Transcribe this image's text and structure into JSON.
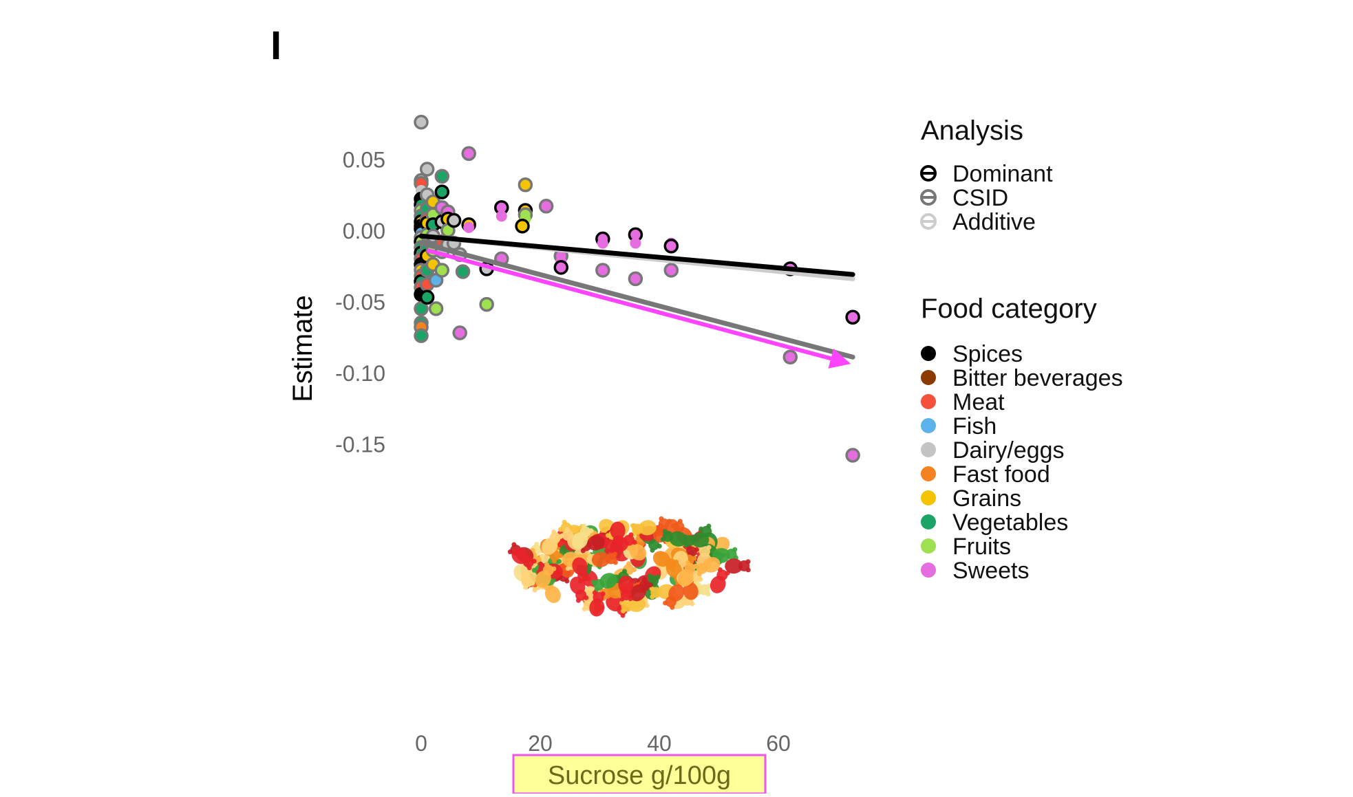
{
  "chart_data": {
    "type": "scatter",
    "panel_label": "I",
    "xlabel": "Sucrose g/100g",
    "ylabel": "Estimate",
    "xlim": [
      -2,
      73
    ],
    "ylim": [
      -0.175,
      0.078
    ],
    "x_ticks": [
      0,
      20,
      40,
      60
    ],
    "x_tick_labels": [
      "0",
      "20",
      "40",
      "60"
    ],
    "y_ticks": [
      0.05,
      0.0,
      -0.05,
      -0.1,
      -0.15
    ],
    "y_tick_labels": [
      "0.05",
      "0.00",
      "-0.05",
      "-0.10",
      "-0.15"
    ],
    "grid": false,
    "xlabel_highlight": {
      "fill": "#ffff99",
      "stroke": "#ee55ee"
    },
    "arrow": {
      "from": [
        1,
        -0.014
      ],
      "to": [
        71.5,
        -0.093
      ],
      "color": "#ff44ff"
    },
    "illustration": "gummy-bears-pile",
    "legends": [
      {
        "title": "Analysis",
        "placement": "right-top",
        "entries": [
          {
            "label": "Dominant",
            "color": "#000000"
          },
          {
            "label": "CSID",
            "color": "#777777"
          },
          {
            "label": "Additive",
            "color": "#cccccc"
          }
        ]
      },
      {
        "title": "Food category",
        "placement": "right-middle",
        "entries": [
          {
            "label": "Spices",
            "color": "#000000"
          },
          {
            "label": "Bitter beverages",
            "color": "#8b3a00"
          },
          {
            "label": "Meat",
            "color": "#f4503c"
          },
          {
            "label": "Fish",
            "color": "#5bb3ea"
          },
          {
            "label": "Dairy/eggs",
            "color": "#c4c4c4"
          },
          {
            "label": "Fast food",
            "color": "#f58220"
          },
          {
            "label": "Grains",
            "color": "#f5c400"
          },
          {
            "label": "Vegetables",
            "color": "#1aa567"
          },
          {
            "label": "Fruits",
            "color": "#9ee04f"
          },
          {
            "label": "Sweets",
            "color": "#e46ee0"
          }
        ]
      }
    ],
    "series": [
      {
        "name": "Dominant",
        "color": "#000000",
        "regression": {
          "x": [
            0,
            72.5
          ],
          "y": [
            -0.004,
            -0.031
          ]
        }
      },
      {
        "name": "CSID",
        "color": "#777777",
        "regression": {
          "x": [
            0,
            72.5
          ],
          "y": [
            -0.009,
            -0.089
          ]
        }
      },
      {
        "name": "Additive",
        "color": "#cccccc",
        "regression": {
          "x": [
            0,
            72.5
          ],
          "y": [
            -0.004,
            -0.034
          ]
        }
      }
    ],
    "points": [
      {
        "x": 0,
        "y": 0.076,
        "category": "Dairy/eggs",
        "analysis": "CSID"
      },
      {
        "x": 1,
        "y": 0.043,
        "category": "Dairy/eggs",
        "analysis": "CSID"
      },
      {
        "x": 0,
        "y": 0.035,
        "category": "Dairy/eggs",
        "analysis": "CSID"
      },
      {
        "x": 0,
        "y": 0.033,
        "category": "Meat",
        "analysis": "CSID"
      },
      {
        "x": 0,
        "y": 0.028,
        "category": "Dairy/eggs",
        "analysis": "Additive"
      },
      {
        "x": 0,
        "y": 0.022,
        "category": "Spices",
        "analysis": "Dominant"
      },
      {
        "x": 0,
        "y": 0.018,
        "category": "Vegetables",
        "analysis": "Dominant"
      },
      {
        "x": 0,
        "y": 0.014,
        "category": "Fruits",
        "analysis": "CSID"
      },
      {
        "x": 0,
        "y": 0.01,
        "category": "Vegetables",
        "analysis": "CSID"
      },
      {
        "x": 0,
        "y": 0.006,
        "category": "Grains",
        "analysis": "Dominant"
      },
      {
        "x": 0,
        "y": 0.003,
        "category": "Meat",
        "analysis": "Dominant"
      },
      {
        "x": 0,
        "y": 0.001,
        "category": "Spices",
        "analysis": "Dominant"
      },
      {
        "x": 0,
        "y": -0.002,
        "category": "Fish",
        "analysis": "Additive"
      },
      {
        "x": 0,
        "y": -0.005,
        "category": "Dairy/eggs",
        "analysis": "CSID"
      },
      {
        "x": 0,
        "y": -0.008,
        "category": "Fruits",
        "analysis": "Dominant"
      },
      {
        "x": 0,
        "y": -0.012,
        "category": "Vegetables",
        "analysis": "CSID"
      },
      {
        "x": 0,
        "y": -0.016,
        "category": "Vegetables",
        "analysis": "Dominant"
      },
      {
        "x": 0,
        "y": -0.02,
        "category": "Meat",
        "analysis": "CSID"
      },
      {
        "x": 0,
        "y": -0.024,
        "category": "Spices",
        "analysis": "Dominant"
      },
      {
        "x": 0,
        "y": -0.028,
        "category": "Grains",
        "analysis": "CSID"
      },
      {
        "x": 0,
        "y": -0.032,
        "category": "Meat",
        "analysis": "CSID"
      },
      {
        "x": 0,
        "y": -0.036,
        "category": "Vegetables",
        "analysis": "Dominant"
      },
      {
        "x": 0,
        "y": -0.04,
        "category": "Meat",
        "analysis": "CSID"
      },
      {
        "x": 0,
        "y": -0.045,
        "category": "Spices",
        "analysis": "Dominant"
      },
      {
        "x": 0,
        "y": -0.055,
        "category": "Vegetables",
        "analysis": "CSID"
      },
      {
        "x": 0,
        "y": -0.065,
        "category": "Vegetables",
        "analysis": "CSID"
      },
      {
        "x": 0,
        "y": -0.068,
        "category": "Fast food",
        "analysis": "CSID"
      },
      {
        "x": 0,
        "y": -0.074,
        "category": "Vegetables",
        "analysis": "CSID"
      },
      {
        "x": 1,
        "y": 0.025,
        "category": "Dairy/eggs",
        "analysis": "CSID"
      },
      {
        "x": 1,
        "y": 0.015,
        "category": "Vegetables",
        "analysis": "CSID"
      },
      {
        "x": 1,
        "y": 0.008,
        "category": "Meat",
        "analysis": "CSID"
      },
      {
        "x": 1,
        "y": 0.005,
        "category": "Grains",
        "analysis": "Dominant"
      },
      {
        "x": 1,
        "y": -0.003,
        "category": "Fruits",
        "analysis": "CSID"
      },
      {
        "x": 1,
        "y": -0.012,
        "category": "Vegetables",
        "analysis": "CSID"
      },
      {
        "x": 1,
        "y": -0.018,
        "category": "Grains",
        "analysis": "Dominant"
      },
      {
        "x": 1,
        "y": -0.028,
        "category": "Vegetables",
        "analysis": "CSID"
      },
      {
        "x": 1,
        "y": -0.038,
        "category": "Meat",
        "analysis": "CSID"
      },
      {
        "x": 1,
        "y": -0.047,
        "category": "Vegetables",
        "analysis": "Dominant"
      },
      {
        "x": 2,
        "y": 0.02,
        "category": "Grains",
        "analysis": "CSID"
      },
      {
        "x": 2,
        "y": 0.011,
        "category": "Fruits",
        "analysis": "CSID"
      },
      {
        "x": 2,
        "y": 0.004,
        "category": "Vegetables",
        "analysis": "Dominant"
      },
      {
        "x": 2,
        "y": -0.004,
        "category": "Dairy/eggs",
        "analysis": "CSID"
      },
      {
        "x": 2,
        "y": -0.014,
        "category": "Fruits",
        "analysis": "CSID"
      },
      {
        "x": 2,
        "y": -0.024,
        "category": "Grains",
        "analysis": "CSID"
      },
      {
        "x": 2.5,
        "y": -0.035,
        "category": "Fish",
        "analysis": "CSID"
      },
      {
        "x": 2.5,
        "y": -0.055,
        "category": "Fruits",
        "analysis": "CSID"
      },
      {
        "x": 3.5,
        "y": 0.038,
        "category": "Vegetables",
        "analysis": "CSID"
      },
      {
        "x": 3.5,
        "y": 0.027,
        "category": "Vegetables",
        "analysis": "Dominant"
      },
      {
        "x": 3.5,
        "y": 0.016,
        "category": "Sweets",
        "analysis": "CSID"
      },
      {
        "x": 3.5,
        "y": 0.006,
        "category": "Dairy/eggs",
        "analysis": "Dominant"
      },
      {
        "x": 3.5,
        "y": -0.008,
        "category": "Meat",
        "analysis": "CSID"
      },
      {
        "x": 3.5,
        "y": -0.015,
        "category": "Dairy/eggs",
        "analysis": "CSID"
      },
      {
        "x": 3.5,
        "y": -0.028,
        "category": "Fruits",
        "analysis": "CSID"
      },
      {
        "x": 4.5,
        "y": 0.013,
        "category": "Sweets",
        "analysis": "CSID"
      },
      {
        "x": 4.5,
        "y": 0.008,
        "category": "Grains",
        "analysis": "Dominant"
      },
      {
        "x": 4.5,
        "y": 0.0,
        "category": "Fruits",
        "analysis": "CSID"
      },
      {
        "x": 4.5,
        "y": -0.01,
        "category": "Dairy/eggs",
        "analysis": "CSID"
      },
      {
        "x": 5.5,
        "y": 0.007,
        "category": "Dairy/eggs",
        "analysis": "Dominant"
      },
      {
        "x": 5.5,
        "y": -0.009,
        "category": "Dairy/eggs",
        "analysis": "CSID"
      },
      {
        "x": 6.5,
        "y": -0.017,
        "category": "Dairy/eggs",
        "analysis": "CSID"
      },
      {
        "x": 6.5,
        "y": -0.072,
        "category": "Sweets",
        "analysis": "CSID"
      },
      {
        "x": 7,
        "y": -0.029,
        "category": "Vegetables",
        "analysis": "CSID"
      },
      {
        "x": 8,
        "y": 0.054,
        "category": "Sweets",
        "analysis": "CSID"
      },
      {
        "x": 8,
        "y": 0.004,
        "category": "Grains",
        "analysis": "Dominant"
      },
      {
        "x": 8,
        "y": 0.002,
        "category": "Sweets",
        "analysis": "Additive"
      },
      {
        "x": 11,
        "y": -0.027,
        "category": "Dairy/eggs",
        "analysis": "Dominant"
      },
      {
        "x": 11,
        "y": -0.052,
        "category": "Fruits",
        "analysis": "CSID"
      },
      {
        "x": 13.5,
        "y": 0.016,
        "category": "Sweets",
        "analysis": "Dominant"
      },
      {
        "x": 13.5,
        "y": 0.01,
        "category": "Sweets",
        "analysis": "Additive"
      },
      {
        "x": 13.5,
        "y": -0.02,
        "category": "Sweets",
        "analysis": "CSID"
      },
      {
        "x": 17.5,
        "y": 0.032,
        "category": "Grains",
        "analysis": "CSID"
      },
      {
        "x": 17.5,
        "y": 0.014,
        "category": "Grains",
        "analysis": "Dominant"
      },
      {
        "x": 17.5,
        "y": 0.011,
        "category": "Fruits",
        "analysis": "CSID"
      },
      {
        "x": 17.5,
        "y": 0.008,
        "category": "Fruits",
        "analysis": "Additive"
      },
      {
        "x": 17,
        "y": 0.003,
        "category": "Grains",
        "analysis": "Dominant"
      },
      {
        "x": 21,
        "y": 0.017,
        "category": "Sweets",
        "analysis": "CSID"
      },
      {
        "x": 23.5,
        "y": -0.018,
        "category": "Sweets",
        "analysis": "CSID"
      },
      {
        "x": 23.5,
        "y": -0.022,
        "category": "Sweets",
        "analysis": "Additive"
      },
      {
        "x": 23.5,
        "y": -0.026,
        "category": "Sweets",
        "analysis": "Dominant"
      },
      {
        "x": 30.5,
        "y": -0.006,
        "category": "Sweets",
        "analysis": "Dominant"
      },
      {
        "x": 30.5,
        "y": -0.009,
        "category": "Sweets",
        "analysis": "Additive"
      },
      {
        "x": 30.5,
        "y": -0.028,
        "category": "Sweets",
        "analysis": "CSID"
      },
      {
        "x": 36,
        "y": -0.003,
        "category": "Sweets",
        "analysis": "Dominant"
      },
      {
        "x": 36,
        "y": -0.009,
        "category": "Sweets",
        "analysis": "Additive"
      },
      {
        "x": 36,
        "y": -0.034,
        "category": "Sweets",
        "analysis": "CSID"
      },
      {
        "x": 42,
        "y": -0.009,
        "category": "Sweets",
        "analysis": "Additive"
      },
      {
        "x": 42,
        "y": -0.011,
        "category": "Sweets",
        "analysis": "Dominant"
      },
      {
        "x": 42,
        "y": -0.028,
        "category": "Sweets",
        "analysis": "CSID"
      },
      {
        "x": 62,
        "y": -0.027,
        "category": "Sweets",
        "analysis": "Dominant"
      },
      {
        "x": 62,
        "y": -0.089,
        "category": "Sweets",
        "analysis": "CSID"
      },
      {
        "x": 72.5,
        "y": -0.061,
        "category": "Sweets",
        "analysis": "Dominant"
      },
      {
        "x": 72.5,
        "y": -0.158,
        "category": "Sweets",
        "analysis": "CSID"
      }
    ]
  }
}
